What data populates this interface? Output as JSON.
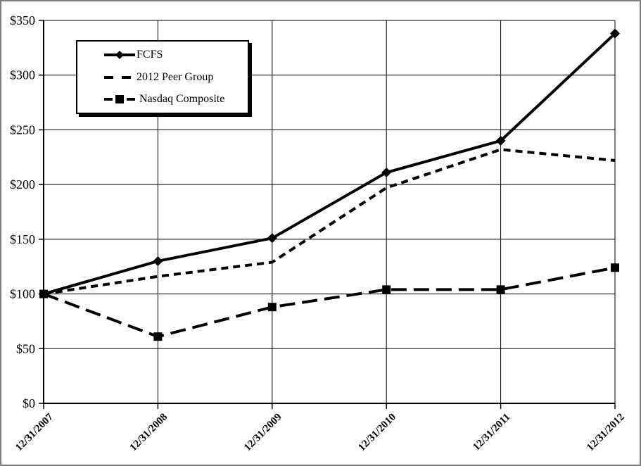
{
  "chart_data": {
    "type": "line",
    "x_labels": [
      "12/31/2007",
      "12/31/2008",
      "12/31/2009",
      "12/31/2010",
      "12/31/2011",
      "12/31/2012"
    ],
    "series": [
      {
        "name": "FCFS",
        "values": [
          100,
          130,
          151,
          211,
          240,
          338
        ],
        "line_style": "solid",
        "marker": "diamond",
        "color": "#000000"
      },
      {
        "name": "2012 Peer Group",
        "values": [
          100,
          116,
          129,
          197,
          232,
          222
        ],
        "line_style": "short-dash",
        "marker": "none",
        "color": "#000000"
      },
      {
        "name": "Nasdaq Composite",
        "values": [
          100,
          61,
          88,
          104,
          104,
          124
        ],
        "line_style": "long-dash",
        "marker": "square",
        "color": "#000000"
      }
    ],
    "ylim": [
      0,
      350
    ],
    "y_tick_step": 50,
    "y_tick_labels": [
      "$0",
      "$50",
      "$100",
      "$150",
      "$200",
      "$250",
      "$300",
      "$350"
    ],
    "grid": true,
    "legend_position": "upper-left",
    "background_color": "#ffffff",
    "axis_color": "#000000",
    "grid_color": "#000000"
  }
}
